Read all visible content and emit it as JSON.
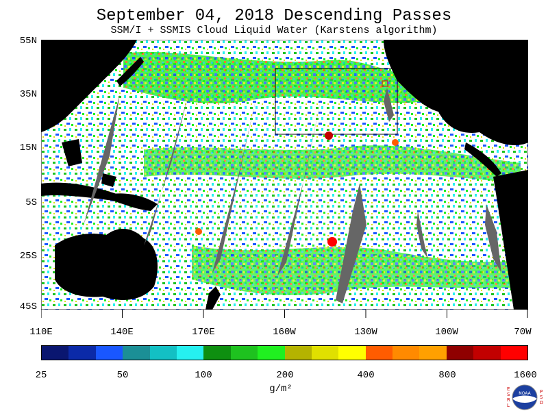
{
  "title": "September 04, 2018  Descending Passes",
  "subtitle": "SSM/I + SSMIS Cloud Liquid Water (Karstens algorithm)",
  "lat_labels": [
    "55N",
    "35N",
    "15N",
    "5S",
    "25S",
    "45S"
  ],
  "lon_labels": [
    "110E",
    "140E",
    "170E",
    "160W",
    "130W",
    "100W",
    "70W"
  ],
  "colorbar": {
    "colors": [
      "#0a1670",
      "#0b2aa8",
      "#1957ff",
      "#1b8f96",
      "#13c0c4",
      "#26f0f0",
      "#0e8f10",
      "#1ec21f",
      "#20f020",
      "#b5b300",
      "#e0e000",
      "#ffff00",
      "#ff5c00",
      "#ff8a00",
      "#ffa000",
      "#8f0000",
      "#c20000",
      "#ff0000"
    ],
    "tick_labels": [
      "25",
      "50",
      "100",
      "200",
      "400",
      "800",
      "1600"
    ]
  },
  "unit": "g/m²",
  "logo": {
    "left_letters": "ESRL",
    "right_letters": "PSD",
    "center": "NOAA"
  }
}
